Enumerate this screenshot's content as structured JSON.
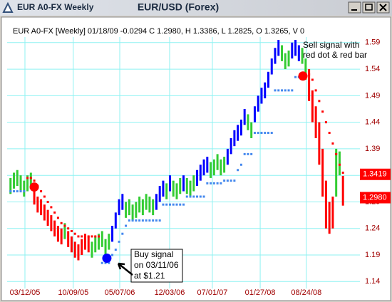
{
  "window_title": "EUR A0-FX Weekly",
  "chart_data": {
    "type": "range_bar",
    "title": "EUR/USD (Forex)",
    "subtitle": "EUR A0-FX [Weekly] 01/18/09  -0.0294 C 1.2980, H 1.3386, L 1.2825, O 1.3265, V 0",
    "xlim": [
      -1,
      103
    ],
    "xticks": [
      {
        "value": 4.25,
        "label": "03/12/05"
      },
      {
        "value": 18.5,
        "label": "10/09/05"
      },
      {
        "value": 32.2,
        "label": "05/07/06"
      },
      {
        "value": 46.9,
        "label": "12/03/06"
      },
      {
        "value": 59.5,
        "label": "07/01/07"
      },
      {
        "value": 73.6,
        "label": "01/27/08"
      },
      {
        "value": 87.2,
        "label": "08/24/08"
      }
    ],
    "ylim": [
      1.127,
      1.638
    ],
    "yticks": [
      1.14,
      1.19,
      1.24,
      1.29,
      1.34,
      1.39,
      1.44,
      1.49,
      1.54,
      1.59
    ],
    "grid": true,
    "grid_color": "#8ef2f2",
    "high": [
      1.335,
      1.345,
      1.35,
      1.34,
      1.33,
      1.34,
      1.345,
      1.315,
      1.3,
      1.295,
      1.285,
      1.275,
      1.265,
      1.255,
      1.245,
      1.24,
      1.25,
      1.235,
      1.225,
      1.215,
      1.21,
      1.22,
      1.23,
      1.225,
      1.215,
      1.225,
      1.23,
      1.235,
      1.22,
      1.23,
      1.245,
      1.27,
      1.295,
      1.305,
      1.29,
      1.295,
      1.285,
      1.29,
      1.3,
      1.295,
      1.305,
      1.3,
      1.295,
      1.305,
      1.32,
      1.33,
      1.325,
      1.34,
      1.33,
      1.325,
      1.335,
      1.34,
      1.335,
      1.33,
      1.34,
      1.35,
      1.36,
      1.37,
      1.375,
      1.365,
      1.37,
      1.38,
      1.37,
      1.375,
      1.39,
      1.41,
      1.425,
      1.435,
      1.445,
      1.465,
      1.455,
      1.44,
      1.47,
      1.49,
      1.505,
      1.515,
      1.535,
      1.56,
      1.58,
      1.595,
      1.585,
      1.57,
      1.575,
      1.59,
      1.595,
      1.585,
      1.58,
      1.56,
      1.54,
      1.5,
      1.47,
      1.44,
      1.39,
      1.33,
      1.29,
      1.3,
      1.39,
      1.385,
      1.339
    ],
    "low": [
      1.305,
      1.315,
      1.32,
      1.31,
      1.3,
      1.31,
      1.315,
      1.285,
      1.27,
      1.265,
      1.255,
      1.245,
      1.235,
      1.225,
      1.215,
      1.21,
      1.22,
      1.205,
      1.195,
      1.185,
      1.18,
      1.19,
      1.2,
      1.195,
      1.185,
      1.195,
      1.2,
      1.205,
      1.19,
      1.2,
      1.215,
      1.24,
      1.265,
      1.275,
      1.26,
      1.265,
      1.255,
      1.26,
      1.27,
      1.265,
      1.275,
      1.27,
      1.265,
      1.275,
      1.29,
      1.3,
      1.295,
      1.31,
      1.3,
      1.295,
      1.305,
      1.31,
      1.305,
      1.3,
      1.31,
      1.32,
      1.33,
      1.34,
      1.345,
      1.335,
      1.34,
      1.35,
      1.34,
      1.345,
      1.36,
      1.38,
      1.395,
      1.405,
      1.415,
      1.435,
      1.425,
      1.41,
      1.44,
      1.46,
      1.475,
      1.485,
      1.505,
      1.53,
      1.55,
      1.565,
      1.555,
      1.54,
      1.545,
      1.56,
      1.565,
      1.555,
      1.55,
      1.52,
      1.48,
      1.44,
      1.41,
      1.36,
      1.3,
      1.24,
      1.23,
      1.24,
      1.3,
      1.34,
      1.283
    ],
    "bar_colors": [
      "#33cc33",
      "#33cc33",
      "#33cc33",
      "#33cc33",
      "#33cc33",
      "#33cc33",
      "#33cc33",
      "#ff0000",
      "#ff0000",
      "#ff0000",
      "#ff0000",
      "#ff0000",
      "#ff0000",
      "#ff0000",
      "#ff0000",
      "#ff0000",
      "#33cc33",
      "#ff0000",
      "#ff0000",
      "#ff0000",
      "#ff0000",
      "#ff0000",
      "#ff0000",
      "#ff0000",
      "#33cc33",
      "#33cc33",
      "#33cc33",
      "#33cc33",
      "#33cc33",
      "#33cc33",
      "#0000ff",
      "#0000ff",
      "#0000ff",
      "#0000ff",
      "#33cc33",
      "#33cc33",
      "#33cc33",
      "#33cc33",
      "#33cc33",
      "#33cc33",
      "#33cc33",
      "#33cc33",
      "#33cc33",
      "#0000ff",
      "#0000ff",
      "#0000ff",
      "#33cc33",
      "#0000ff",
      "#33cc33",
      "#33cc33",
      "#33cc33",
      "#0000ff",
      "#33cc33",
      "#33cc33",
      "#33cc33",
      "#0000ff",
      "#0000ff",
      "#0000ff",
      "#0000ff",
      "#33cc33",
      "#33cc33",
      "#33cc33",
      "#33cc33",
      "#33cc33",
      "#0000ff",
      "#0000ff",
      "#0000ff",
      "#0000ff",
      "#0000ff",
      "#0000ff",
      "#33cc33",
      "#33cc33",
      "#0000ff",
      "#0000ff",
      "#0000ff",
      "#0000ff",
      "#0000ff",
      "#0000ff",
      "#0000ff",
      "#0000ff",
      "#33cc33",
      "#33cc33",
      "#33cc33",
      "#0000ff",
      "#0000ff",
      "#0000ff",
      "#33cc33",
      "#33cc33",
      "#ff0000",
      "#ff0000",
      "#ff0000",
      "#ff0000",
      "#ff0000",
      "#ff0000",
      "#ff0000",
      "#ff0000",
      "#33cc33",
      "#33cc33",
      "#ff0000"
    ],
    "stops_up": {
      "color": "#4488ee",
      "values": [
        1.31,
        1.31,
        1.31,
        1.31,
        1.31,
        null,
        null,
        null,
        null,
        null,
        null,
        null,
        null,
        null,
        null,
        null,
        null,
        null,
        null,
        null,
        null,
        null,
        null,
        null,
        null,
        null,
        null,
        1.175,
        1.175,
        1.175,
        1.19,
        1.2,
        1.215,
        1.23,
        1.245,
        1.255,
        1.255,
        1.255,
        1.255,
        1.255,
        1.255,
        1.255,
        1.255,
        1.255,
        1.255,
        1.285,
        1.285,
        1.285,
        1.285,
        1.285,
        1.285,
        1.285,
        1.3,
        1.3,
        1.3,
        1.3,
        1.3,
        1.3,
        1.325,
        1.325,
        1.325,
        1.325,
        1.325,
        1.33,
        1.33,
        1.33,
        1.33,
        1.35,
        1.36,
        1.38,
        1.38,
        1.38,
        1.42,
        1.42,
        1.42,
        1.42,
        1.42,
        1.42,
        1.5,
        1.5,
        1.5,
        1.5,
        1.5,
        1.5,
        1.525,
        1.525,
        1.525,
        1.525,
        null,
        null,
        null,
        null,
        null,
        null,
        null,
        null,
        null,
        null,
        null
      ]
    },
    "stops_down": {
      "color": "#ff0000",
      "values": [
        null,
        null,
        null,
        null,
        null,
        1.335,
        1.335,
        1.33,
        1.32,
        1.31,
        1.3,
        1.29,
        1.28,
        1.27,
        1.26,
        1.25,
        1.245,
        1.24,
        1.235,
        1.23,
        1.225,
        1.225,
        1.225,
        1.225,
        1.225,
        1.225,
        1.225,
        null,
        null,
        null,
        null,
        null,
        null,
        null,
        null,
        null,
        null,
        null,
        null,
        null,
        null,
        null,
        null,
        null,
        null,
        null,
        null,
        null,
        null,
        null,
        null,
        null,
        null,
        null,
        null,
        null,
        null,
        null,
        null,
        null,
        null,
        null,
        null,
        null,
        null,
        null,
        null,
        null,
        null,
        null,
        null,
        null,
        null,
        null,
        null,
        null,
        null,
        null,
        null,
        null,
        null,
        null,
        null,
        null,
        null,
        null,
        null,
        null,
        1.53,
        1.52,
        1.5,
        1.48,
        1.46,
        1.44,
        1.42,
        1.4,
        1.38,
        1.36,
        1.345
      ]
    },
    "signals": [
      {
        "x": 7,
        "price": 1.318,
        "color": "#ff0000"
      },
      {
        "x": 28.4,
        "price": 1.184,
        "color": "#0000ff"
      },
      {
        "x": 86.2,
        "price": 1.527,
        "color": "#ff0000"
      }
    ],
    "price_labels": [
      {
        "value": 1.3419,
        "color": "#ff0000"
      },
      {
        "value": 1.298,
        "label": "1.2980",
        "color": "#ff0000"
      }
    ],
    "annotations": {
      "buy": [
        "Buy signal",
        "on 03/11/06",
        "at $1.21"
      ],
      "sell": [
        "Sell signal with",
        "red dot & red bar"
      ]
    }
  }
}
